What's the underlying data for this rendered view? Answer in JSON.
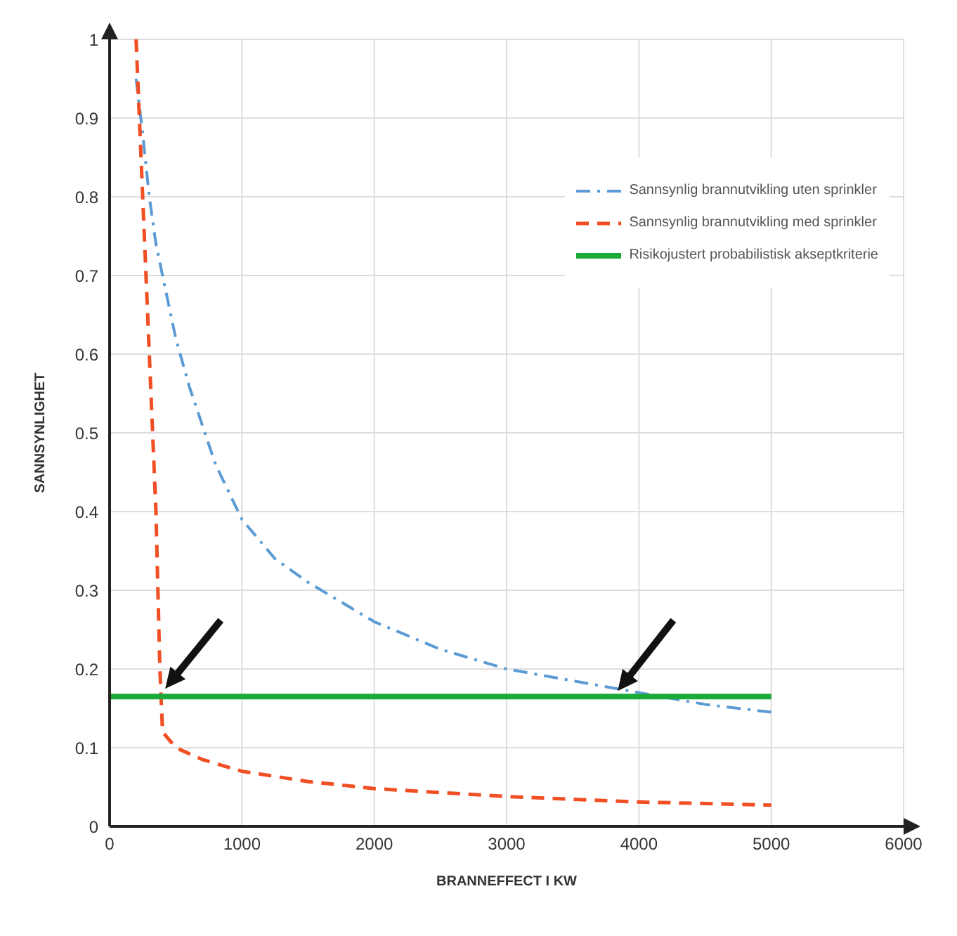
{
  "chart_data": {
    "type": "line",
    "xlabel": "BRANNEFFECT I KW",
    "ylabel": "SANNSYNLIGHET",
    "xlim": [
      0,
      6000
    ],
    "xticks": [
      0,
      1000,
      2000,
      3000,
      4000,
      5000,
      6000
    ],
    "ylim": [
      0,
      1
    ],
    "yticks": [
      0,
      0.1,
      0.2,
      0.3,
      0.4,
      0.5,
      0.6,
      0.7,
      0.8,
      0.9,
      1
    ],
    "grid": true,
    "legend": "top right",
    "marker": "none",
    "series": [
      {
        "name": "Sannsynlig brannutvikling uten sprinkler",
        "color": "#5b9bd5",
        "line_style": "dashdot",
        "x": [
          200,
          250,
          300,
          350,
          400,
          500,
          600,
          800,
          1000,
          1250,
          1500,
          2000,
          2500,
          3000,
          3500,
          4000,
          4500,
          5000
        ],
        "values": [
          0.95,
          0.88,
          0.8,
          0.74,
          0.7,
          0.62,
          0.56,
          0.46,
          0.39,
          0.34,
          0.31,
          0.26,
          0.225,
          0.2,
          0.185,
          0.17,
          0.155,
          0.145
        ]
      },
      {
        "name": "Sannsynlig brannutvikling med sprinkler",
        "color": "#f04e23",
        "line_style": "dashed",
        "x": [
          200,
          250,
          300,
          350,
          380,
          400,
          500,
          700,
          1000,
          1500,
          2000,
          3000,
          4000,
          5000
        ],
        "values": [
          1,
          0.8,
          0.6,
          0.4,
          0.2,
          0.12,
          0.1,
          0.085,
          0.07,
          0.057,
          0.048,
          0.038,
          0.031,
          0.027
        ]
      },
      {
        "name": "Risikojustert probabilistisk akseptkriterie",
        "color": "#1aaa3a",
        "line_style": "solid",
        "x": [
          0,
          5000
        ],
        "values": [
          0.165,
          0.165
        ]
      }
    ]
  }
}
